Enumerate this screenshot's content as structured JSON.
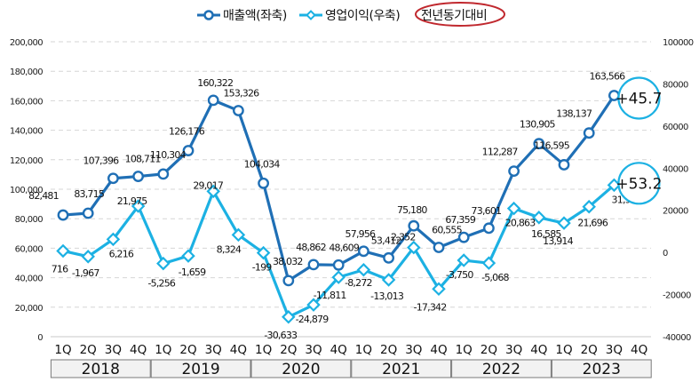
{
  "chart_data": {
    "type": "line",
    "title": "",
    "legend": {
      "placement": "top-center",
      "entries": [
        "매출액(좌축)",
        "영업이익(우축)",
        "전년동기대비"
      ]
    },
    "categories": [
      "1Q",
      "2Q",
      "3Q",
      "4Q",
      "1Q",
      "2Q",
      "3Q",
      "4Q",
      "1Q",
      "2Q",
      "3Q",
      "4Q",
      "1Q",
      "2Q",
      "3Q",
      "4Q",
      "1Q",
      "2Q",
      "3Q",
      "4Q",
      "1Q",
      "2Q",
      "3Q",
      "4Q"
    ],
    "years": [
      "2018",
      "2019",
      "2020",
      "2021",
      "2022",
      "2023"
    ],
    "left_axis": {
      "range": [
        0,
        200000
      ],
      "ticks": [
        "0",
        "20,000",
        "40,000",
        "60,000",
        "80,000",
        "100,000",
        "120,000",
        "140,000",
        "160,000",
        "180,000",
        "200,000"
      ]
    },
    "right_axis": {
      "range": [
        -40000,
        100000
      ],
      "ticks": [
        "-40000",
        "-20000",
        "0",
        "20000",
        "40000",
        "60000",
        "80000",
        "100000"
      ]
    },
    "grid": true,
    "series": [
      {
        "name": "매출액(좌축)",
        "axis": "left",
        "color": "#1f6fb5",
        "marker": "circle",
        "values": [
          82481,
          83715,
          107396,
          108711,
          110304,
          126176,
          160322,
          153326,
          104034,
          38032,
          48862,
          48609,
          57956,
          53412,
          75180,
          60555,
          67359,
          73601,
          112287,
          130905,
          116595,
          138137,
          163566,
          null
        ],
        "labels": [
          "82,481",
          "83,715",
          "107,396",
          "108,711",
          "110,304",
          "126,176",
          "160,322",
          "153,326",
          "104,034",
          "38,032",
          "48,862",
          "48,609",
          "57,956",
          "53,412",
          "75,180",
          "60,555",
          "67,359",
          "73,601",
          "112,287",
          "130,905",
          "116,595",
          "138,137",
          "163,566",
          ""
        ]
      },
      {
        "name": "영업이익(우축)",
        "axis": "right",
        "color": "#1cb1e3",
        "marker": "diamond",
        "values": [
          716,
          -1967,
          6216,
          21975,
          -5256,
          -1659,
          29017,
          8324,
          -199,
          -30633,
          -24879,
          -11811,
          -8272,
          -13013,
          2352,
          -17342,
          -3750,
          -5068,
          20863,
          16585,
          13914,
          21696,
          31972,
          null
        ],
        "labels": [
          "716",
          "-1,967",
          "6,216",
          "21,975",
          "-5,256",
          "-1,659",
          "29,017",
          "8,324",
          "-199",
          "-30,633",
          "-24,879",
          "-11,811",
          "-8,272",
          "-13,013",
          "2,352",
          "-17,342",
          "-3,750",
          "-5,068",
          "20,863",
          "16,585",
          "13,914",
          "21,696",
          "31,972",
          ""
        ]
      }
    ],
    "annotations": [
      {
        "text": "+45.7",
        "series": "매출액(좌축)",
        "meaning": "전년동기대비"
      },
      {
        "text": "+53.2",
        "series": "영업이익(우축)",
        "meaning": "전년동기대비"
      }
    ],
    "colors": {
      "sales": "#1f6fb5",
      "profit": "#1cb1e3",
      "yoy_ellipse": "#c0282e",
      "badge_ring": "#1cb1e3",
      "year_box_fill": "#f2f2f2"
    }
  }
}
